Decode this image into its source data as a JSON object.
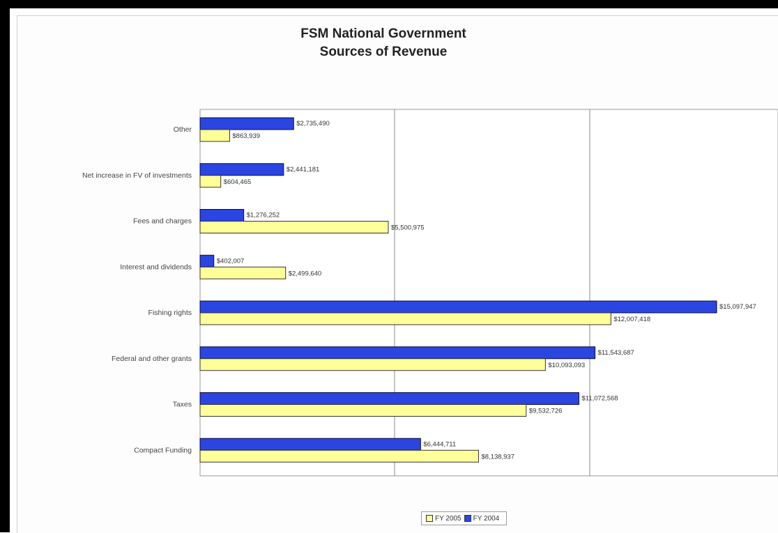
{
  "chart_data": {
    "type": "bar",
    "orientation": "horizontal",
    "title": "FSM National Government",
    "subtitle": "Sources of Revenue",
    "categories": [
      "Other",
      "Net increase in FV of investments",
      "Fees and charges",
      "Interest and dividends",
      "Fishing rights",
      "Federal and other grants",
      "Taxes",
      "Compact Funding"
    ],
    "series": [
      {
        "name": "FY 2004",
        "color": "#2a45e0",
        "values": [
          2735490,
          2441181,
          1276252,
          402007,
          15097947,
          11543687,
          11072568,
          6444711
        ],
        "labels": [
          "$2,735,490",
          "$2,441,181",
          "$1,276,252",
          "$402,007",
          "$15,097,947",
          "$11,543,687",
          "$11,072,568",
          "$6,444,711"
        ]
      },
      {
        "name": "FY 2005",
        "color": "#ffff99",
        "values": [
          863939,
          604465,
          5500975,
          2499640,
          12007418,
          10093093,
          9532726,
          8138937
        ],
        "labels": [
          "$863,939",
          "$604,465",
          "$5,500,975",
          "$2,499,640",
          "$12,007,418",
          "$10,093,093",
          "$9,532,726",
          "$8,138,937"
        ]
      }
    ],
    "xlim": [
      0,
      15000000
    ],
    "grid": true,
    "legend_position": "bottom",
    "legend_order": [
      "FY 2005",
      "FY 2004"
    ]
  }
}
